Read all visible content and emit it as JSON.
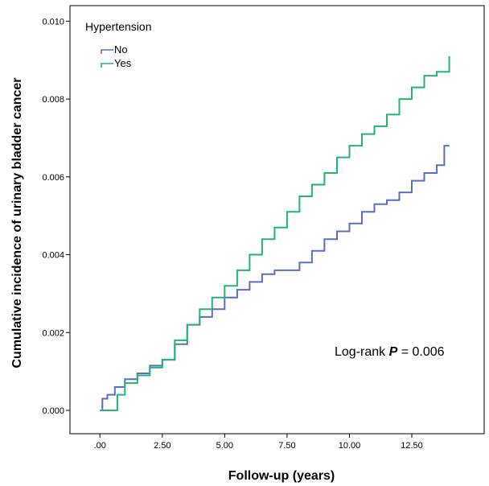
{
  "chart_data": {
    "type": "line",
    "xlabel": "Follow-up (years)",
    "ylabel": "Cumulative incidence of urinary bladder cancer",
    "xlim": [
      -1.2,
      15.4
    ],
    "ylim": [
      -0.0006,
      0.0104
    ],
    "x_ticks": [
      {
        "value": 0,
        "label": ".00"
      },
      {
        "value": 2.5,
        "label": "2.50"
      },
      {
        "value": 5,
        "label": "5.00"
      },
      {
        "value": 7.5,
        "label": "7.50"
      },
      {
        "value": 10,
        "label": "10.00"
      },
      {
        "value": 12.5,
        "label": "12.50"
      }
    ],
    "y_ticks": [
      {
        "value": 0,
        "label": "0.000"
      },
      {
        "value": 0.002,
        "label": "0.002"
      },
      {
        "value": 0.004,
        "label": "0.004"
      },
      {
        "value": 0.006,
        "label": "0.006"
      },
      {
        "value": 0.008,
        "label": "0.008"
      },
      {
        "value": 0.01,
        "label": "0.010"
      }
    ],
    "legend": {
      "title": "Hypertension",
      "position": "top-left"
    },
    "annotation": {
      "text_prefix": "Log-rank ",
      "text_p": "P",
      "text_suffix": " = 0.006"
    },
    "series": [
      {
        "name": "No",
        "color": "#5b6ec6",
        "x": [
          0.0,
          0.1,
          0.3,
          0.6,
          1.0,
          1.5,
          2.0,
          2.5,
          3.0,
          3.5,
          4.0,
          4.5,
          5.0,
          5.5,
          6.0,
          6.5,
          7.0,
          7.5,
          8.0,
          8.5,
          9.0,
          9.5,
          10.0,
          10.5,
          11.0,
          11.5,
          12.0,
          12.5,
          13.0,
          13.5,
          13.8,
          14.0
        ],
        "y": [
          0.0,
          0.0003,
          0.0004,
          0.0006,
          0.0008,
          0.00095,
          0.00115,
          0.0013,
          0.0017,
          0.0022,
          0.0024,
          0.0026,
          0.0029,
          0.0031,
          0.0033,
          0.0035,
          0.0036,
          0.0036,
          0.0038,
          0.0041,
          0.0044,
          0.0046,
          0.0048,
          0.0051,
          0.0053,
          0.0054,
          0.0056,
          0.0059,
          0.0061,
          0.0063,
          0.0068,
          0.0068
        ]
      },
      {
        "name": "Yes",
        "color": "#22b573",
        "x": [
          0.0,
          0.3,
          0.5,
          0.7,
          1.0,
          1.5,
          2.0,
          2.5,
          3.0,
          3.5,
          4.0,
          4.5,
          5.0,
          5.5,
          6.0,
          6.5,
          7.0,
          7.5,
          8.0,
          8.5,
          9.0,
          9.5,
          10.0,
          10.5,
          11.0,
          11.5,
          12.0,
          12.5,
          13.0,
          13.5,
          14.0
        ],
        "y": [
          0.0,
          0.0,
          0.0,
          0.0004,
          0.0007,
          0.0009,
          0.0011,
          0.0013,
          0.0018,
          0.0022,
          0.0026,
          0.0029,
          0.0032,
          0.0036,
          0.004,
          0.0044,
          0.0047,
          0.0051,
          0.0055,
          0.0058,
          0.0061,
          0.0065,
          0.0068,
          0.0071,
          0.0073,
          0.0076,
          0.008,
          0.0083,
          0.0086,
          0.0087,
          0.0091
        ]
      }
    ]
  }
}
